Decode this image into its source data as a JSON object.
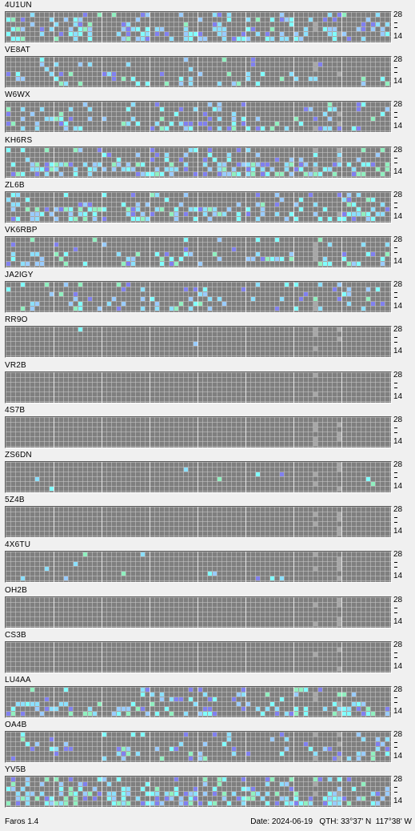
{
  "app": {
    "name": "Faros 1.4",
    "date_label": "Date:",
    "date": "2024-06-19",
    "qth_label": "QTH:",
    "qth": "33°37' N  117°38' W"
  },
  "axis": {
    "top_label": "28",
    "bottom_label": "14"
  },
  "colors": {
    "grid_bg": "#7f7f7f",
    "cell_weak": "#99ccff",
    "cell_medium": "#8be0ff",
    "cell_strong": "#80ffff",
    "cell_purple": "#8080f0",
    "cell_green": "#90f0c0",
    "cell_lightgray": "#a8a8a8"
  },
  "beacons": [
    {
      "callsign": "4U1UN"
    },
    {
      "callsign": "VE8AT"
    },
    {
      "callsign": "W6WX"
    },
    {
      "callsign": "KH6RS"
    },
    {
      "callsign": "ZL6B"
    },
    {
      "callsign": "VK6RBP"
    },
    {
      "callsign": "JA2IGY"
    },
    {
      "callsign": "RR9O"
    },
    {
      "callsign": "VR2B"
    },
    {
      "callsign": "4S7B"
    },
    {
      "callsign": "ZS6DN"
    },
    {
      "callsign": "5Z4B"
    },
    {
      "callsign": "4X6TU"
    },
    {
      "callsign": "OH2B"
    },
    {
      "callsign": "CS3B"
    },
    {
      "callsign": "LU4AA"
    },
    {
      "callsign": "OA4B"
    },
    {
      "callsign": "YV5B"
    }
  ]
}
